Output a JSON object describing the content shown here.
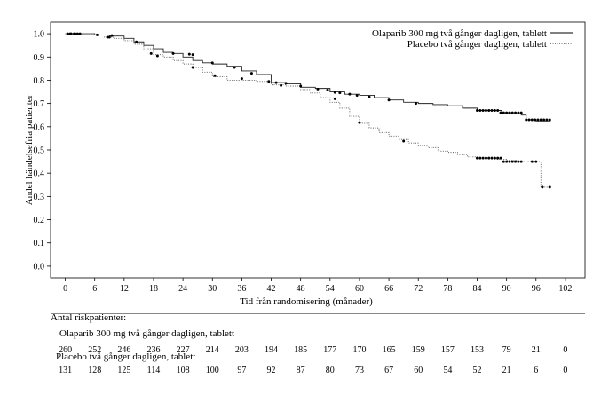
{
  "chart_data": {
    "type": "line",
    "title": "",
    "xlabel": "Tid från randomisering (månader)",
    "ylabel": "Andel händelsefria patienter",
    "xlim": [
      -3,
      106
    ],
    "ylim": [
      -0.05,
      1.05
    ],
    "xticks": [
      0,
      6,
      12,
      18,
      24,
      30,
      36,
      42,
      48,
      54,
      60,
      66,
      72,
      78,
      84,
      90,
      96,
      102
    ],
    "yticks": [
      "0.0",
      "0.1",
      "0.2",
      "0.3",
      "0.4",
      "0.5",
      "0.6",
      "0.7",
      "0.8",
      "0.9",
      "1.0"
    ],
    "legend_position": "top-right",
    "series": [
      {
        "name": "Olaparib 300 mg två gånger dagligen, tablett",
        "style": "solid",
        "x": [
          0,
          3,
          6,
          9,
          12,
          14,
          16,
          18,
          20,
          22,
          24,
          26,
          28,
          30,
          33,
          36,
          39,
          42,
          45,
          48,
          51,
          54,
          57,
          60,
          63,
          66,
          69,
          72,
          75,
          78,
          81,
          84,
          87,
          89,
          91,
          93,
          94,
          96,
          99
        ],
        "y": [
          1.0,
          1.0,
          0.995,
          0.99,
          0.98,
          0.965,
          0.95,
          0.935,
          0.92,
          0.915,
          0.9,
          0.885,
          0.875,
          0.87,
          0.86,
          0.84,
          0.825,
          0.79,
          0.785,
          0.77,
          0.765,
          0.75,
          0.74,
          0.735,
          0.725,
          0.715,
          0.705,
          0.7,
          0.695,
          0.69,
          0.68,
          0.67,
          0.67,
          0.66,
          0.655,
          0.65,
          0.63,
          0.625,
          0.625
        ],
        "censored": [
          [
            0.5,
            1.0
          ],
          [
            1.2,
            1.0
          ],
          [
            1.8,
            1.0
          ],
          [
            2.5,
            1.0
          ],
          [
            6.5,
            0.995
          ],
          [
            8.6,
            0.985
          ],
          [
            9.5,
            0.992
          ],
          [
            14.5,
            0.965
          ],
          [
            22,
            0.915
          ],
          [
            25.3,
            0.912
          ],
          [
            26,
            0.91
          ],
          [
            30,
            0.875
          ],
          [
            34.5,
            0.855
          ],
          [
            38,
            0.83
          ],
          [
            41.5,
            0.795
          ],
          [
            43,
            0.79
          ],
          [
            45,
            0.787
          ],
          [
            48,
            0.775
          ],
          [
            51.5,
            0.762
          ],
          [
            53.5,
            0.758
          ],
          [
            55,
            0.748
          ],
          [
            56,
            0.746
          ],
          [
            58,
            0.74
          ],
          [
            59.5,
            0.735
          ],
          [
            62,
            0.728
          ],
          [
            66,
            0.715
          ],
          [
            71.5,
            0.7
          ],
          [
            84,
            0.67
          ],
          [
            84.6,
            0.67
          ],
          [
            85.2,
            0.67
          ],
          [
            85.8,
            0.67
          ],
          [
            86.4,
            0.67
          ],
          [
            87,
            0.67
          ],
          [
            87.6,
            0.67
          ],
          [
            88.2,
            0.67
          ],
          [
            88.8,
            0.66
          ],
          [
            89.4,
            0.66
          ],
          [
            90,
            0.66
          ],
          [
            90.6,
            0.66
          ],
          [
            91.2,
            0.66
          ],
          [
            91.8,
            0.66
          ],
          [
            92.4,
            0.66
          ],
          [
            93,
            0.66
          ],
          [
            94,
            0.63
          ],
          [
            94.6,
            0.63
          ],
          [
            95.2,
            0.63
          ],
          [
            95.8,
            0.63
          ],
          [
            96.4,
            0.63
          ],
          [
            97,
            0.63
          ],
          [
            97.6,
            0.63
          ],
          [
            98.2,
            0.63
          ],
          [
            98.8,
            0.63
          ]
        ]
      },
      {
        "name": "Placebo två gånger dagligen, tablett",
        "style": "dotted",
        "x": [
          0,
          4,
          6,
          8,
          10,
          12,
          14,
          16,
          18,
          20,
          22,
          24,
          26,
          28,
          30,
          33,
          36,
          39,
          42,
          45,
          48,
          50,
          52,
          54,
          56,
          58,
          60,
          62,
          64,
          66,
          68,
          70,
          72,
          74,
          76,
          78,
          80,
          82,
          84,
          86,
          88,
          90,
          92,
          94,
          95,
          96,
          97,
          98,
          99
        ],
        "y": [
          1.0,
          1.0,
          0.995,
          0.985,
          0.98,
          0.97,
          0.955,
          0.935,
          0.91,
          0.9,
          0.885,
          0.87,
          0.855,
          0.835,
          0.815,
          0.8,
          0.8,
          0.795,
          0.78,
          0.775,
          0.76,
          0.745,
          0.725,
          0.705,
          0.68,
          0.645,
          0.615,
          0.595,
          0.575,
          0.56,
          0.545,
          0.53,
          0.52,
          0.51,
          0.495,
          0.49,
          0.48,
          0.47,
          0.465,
          0.465,
          0.46,
          0.455,
          0.45,
          0.45,
          0.45,
          0.45,
          0.34,
          0.34,
          0.34
        ],
        "censored": [
          [
            1,
            1.0
          ],
          [
            2,
            1.0
          ],
          [
            3,
            1.0
          ],
          [
            9,
            0.985
          ],
          [
            17.5,
            0.915
          ],
          [
            18.8,
            0.905
          ],
          [
            26,
            0.855
          ],
          [
            30.5,
            0.82
          ],
          [
            36,
            0.807
          ],
          [
            44,
            0.778
          ],
          [
            55,
            0.72
          ],
          [
            60,
            0.618
          ],
          [
            69,
            0.538
          ],
          [
            84,
            0.465
          ],
          [
            84.6,
            0.465
          ],
          [
            85.2,
            0.465
          ],
          [
            85.8,
            0.465
          ],
          [
            86.4,
            0.465
          ],
          [
            87,
            0.465
          ],
          [
            87.6,
            0.465
          ],
          [
            88.2,
            0.465
          ],
          [
            88.8,
            0.465
          ],
          [
            89.4,
            0.45
          ],
          [
            90,
            0.45
          ],
          [
            90.6,
            0.45
          ],
          [
            91.2,
            0.45
          ],
          [
            91.8,
            0.45
          ],
          [
            92.4,
            0.45
          ],
          [
            93,
            0.45
          ],
          [
            95.2,
            0.45
          ],
          [
            96,
            0.45
          ],
          [
            97.3,
            0.34
          ],
          [
            98.8,
            0.34
          ]
        ]
      }
    ]
  },
  "risk_table": {
    "title": "Antal riskpatienter:",
    "groups": [
      {
        "label": "Olaparib 300 mg två gånger dagligen, tablett",
        "counts": [
          "260",
          "252",
          "246",
          "236",
          "227",
          "214",
          "203",
          "194",
          "185",
          "177",
          "170",
          "165",
          "159",
          "157",
          "153",
          "79",
          "21",
          "0"
        ]
      },
      {
        "label": "Placebo två gånger dagligen, tablett",
        "counts": [
          "131",
          "128",
          "125",
          "114",
          "108",
          "100",
          "97",
          "92",
          "87",
          "80",
          "73",
          "67",
          "60",
          "54",
          "52",
          "21",
          "6",
          "0"
        ]
      }
    ]
  }
}
